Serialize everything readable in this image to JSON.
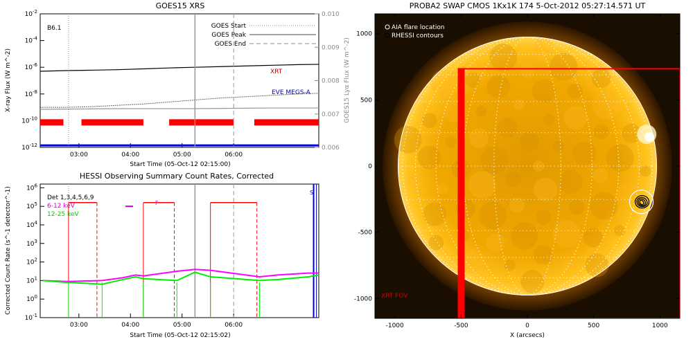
{
  "chart_data": [
    {
      "type": "line",
      "title": "GOES15 XRS",
      "xlabel": "Start Time (05-Oct-12 02:15:00)",
      "ylabel": "X-ray Flux (W m^-2)",
      "ylabel_right": "GOES15 Lyα Flux (W m^-2)",
      "x_ticks": [
        "03:00",
        "04:00",
        "05:00",
        "06:00"
      ],
      "y_ticks": [
        "10^-2",
        "10^-4",
        "10^-6",
        "10^-8",
        "10^-10",
        "10^-12"
      ],
      "y_right_ticks": [
        "0.010",
        "0.009",
        "0.008",
        "0.007",
        "0.006"
      ],
      "annotation": "B6.1",
      "legend": [
        "GOES Start",
        "GOES Peak",
        "GOES End"
      ],
      "series_labels": {
        "xrt": "XRT",
        "eve": "EVE MEGS-A"
      },
      "xrs_long_log": [
        [
          0,
          -6.3
        ],
        [
          0.5,
          -6.25
        ],
        [
          1.0,
          -6.22
        ],
        [
          1.5,
          -6.18
        ],
        [
          2.0,
          -6.12
        ],
        [
          2.5,
          -6.05
        ],
        [
          3.0,
          -6.0
        ],
        [
          3.5,
          -5.95
        ],
        [
          4.0,
          -5.9
        ],
        [
          4.5,
          -5.85
        ],
        [
          5.0,
          -5.8
        ],
        [
          5.4,
          -5.78
        ]
      ],
      "xrs_short_log": [
        [
          0,
          -9.0
        ],
        [
          0.5,
          -9.0
        ],
        [
          1.0,
          -8.95
        ],
        [
          1.5,
          -8.85
        ],
        [
          2.0,
          -8.75
        ],
        [
          2.5,
          -8.6
        ],
        [
          3.0,
          -8.45
        ],
        [
          3.5,
          -8.3
        ],
        [
          4.0,
          -8.2
        ],
        [
          4.5,
          -8.1
        ],
        [
          5.0,
          -8.0
        ],
        [
          5.4,
          -7.95
        ]
      ],
      "lya_series_log": [
        [
          0,
          -9.15
        ],
        [
          1.5,
          -9.1
        ],
        [
          3.0,
          -9.1
        ],
        [
          4.5,
          -9.05
        ],
        [
          5.4,
          -9.05
        ]
      ],
      "xrt_segments_hours": [
        [
          0,
          0.45
        ],
        [
          0.8,
          2.0
        ],
        [
          2.5,
          3.75
        ],
        [
          4.15,
          5.4
        ]
      ],
      "goes_start_hour": 0.55,
      "goes_peak_hour": 3.0,
      "goes_end_hour": 3.75
    },
    {
      "type": "line",
      "title": "HESSI Observing Summary Count Rates, Corrected",
      "xlabel": "Start Time (05-Oct-12 02:15:02)",
      "ylabel": "Corrected Count Rate (s^-1 detector^-1)",
      "x_ticks": [
        "03:00",
        "04:00",
        "05:00",
        "06:00"
      ],
      "y_ticks": [
        "10^6",
        "10^5",
        "10^4",
        "10^3",
        "10^2",
        "10^1",
        "10^0",
        "10^-1"
      ],
      "legend": [
        "Det 1,3,4,5,6,9",
        "6-12 keV",
        "12-25 keV"
      ],
      "flag_labels": [
        "F",
        "S"
      ],
      "flag_F_hours": [
        1.65,
        1.8
      ],
      "flag_S_hour": 5.3,
      "attenuator_hours": [
        0.55,
        1.1,
        2.0,
        2.6,
        3.3,
        4.2
      ],
      "series_6_12_log": [
        [
          0.05,
          1.0
        ],
        [
          0.5,
          0.95
        ],
        [
          0.55,
          0.95
        ],
        [
          1.2,
          1.0
        ],
        [
          1.6,
          1.15
        ],
        [
          1.85,
          1.3
        ],
        [
          2.0,
          1.25
        ],
        [
          2.65,
          1.5
        ],
        [
          3.0,
          1.6
        ],
        [
          3.3,
          1.55
        ],
        [
          4.25,
          1.2
        ],
        [
          4.6,
          1.3
        ],
        [
          5.2,
          1.4
        ],
        [
          5.4,
          1.4
        ]
      ],
      "series_12_25_log": [
        [
          0.05,
          1.0
        ],
        [
          0.5,
          0.9
        ],
        [
          0.55,
          0.9
        ],
        [
          1.2,
          0.8
        ],
        [
          1.6,
          1.05
        ],
        [
          1.85,
          1.2
        ],
        [
          2.0,
          1.1
        ],
        [
          2.65,
          1.0
        ],
        [
          3.0,
          1.45
        ],
        [
          3.3,
          1.2
        ],
        [
          4.25,
          1.0
        ],
        [
          4.6,
          1.05
        ],
        [
          5.2,
          1.2
        ],
        [
          5.4,
          1.3
        ]
      ],
      "level_high_log": 5.2
    },
    {
      "type": "scatter",
      "title": "PROBA2 SWAP CMOS 1Kx1K 174  5-Oct-2012 05:27:14.571 UT",
      "xlabel": "X (arcsecs)",
      "x_ticks": [
        "-1000",
        "-500",
        "0",
        "500",
        "1000"
      ],
      "y_ticks": [
        "1000",
        "500",
        "0",
        "-500",
        "-1000"
      ],
      "xlim": [
        -1150,
        1150
      ],
      "ylim": [
        -1150,
        1150
      ],
      "legend": [
        "AIA flare location",
        "RHESSI contours"
      ],
      "fov_label": "XRT FOV",
      "solar_radius_arcsec": 975,
      "flare_location_arcsec": [
        860,
        -270
      ],
      "xrt_fov_arcsec": {
        "xmin": -520,
        "xmax": 1150,
        "ymin": -1150,
        "ymax": 735
      },
      "colors": {
        "sun": "#f2a400",
        "sun_bright": "#ffd24a",
        "fov": "#ff0000",
        "grid": "#ffffff"
      }
    }
  ]
}
